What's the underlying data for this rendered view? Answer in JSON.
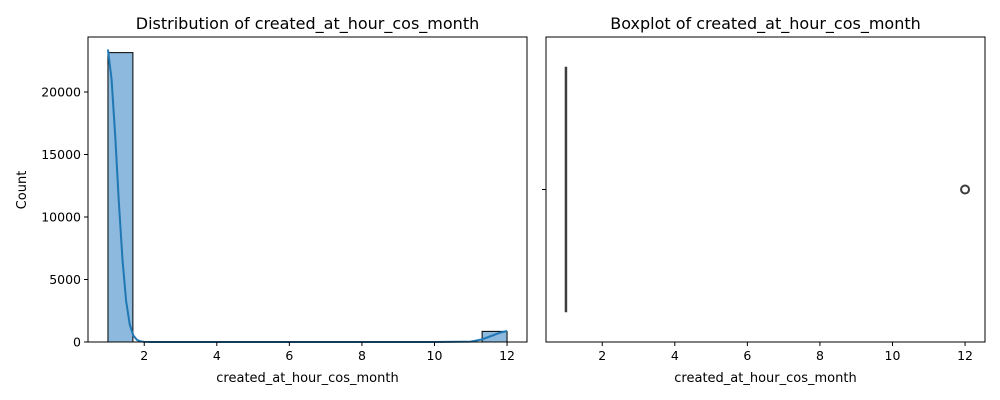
{
  "chart_data": [
    {
      "type": "histogram",
      "title": "Distribution of created_at_hour_cos_month",
      "xlabel": "created_at_hour_cos_month",
      "ylabel": "Count",
      "xlim": [
        0.45,
        12.55
      ],
      "ylim": [
        0,
        24400
      ],
      "xticks": [
        "2",
        "4",
        "6",
        "8",
        "10",
        "12"
      ],
      "yticks": [
        "0",
        "5000",
        "10000",
        "15000",
        "20000"
      ],
      "bins": [
        {
          "x0": 1.0,
          "x1": 1.6875,
          "count": 23150
        },
        {
          "x0": 11.3125,
          "x1": 12.0,
          "count": 850
        }
      ],
      "kde": {
        "x": [
          1.0,
          1.1,
          1.2,
          1.3,
          1.4,
          1.5,
          1.6,
          1.7,
          1.8,
          1.9,
          2.0,
          2.2,
          2.5,
          4,
          6,
          8,
          10,
          11.0,
          11.3,
          11.6,
          11.8,
          12.0
        ],
        "y": [
          23400,
          21000,
          16500,
          11200,
          6600,
          3300,
          1400,
          520,
          170,
          50,
          15,
          0,
          0,
          0,
          0,
          0,
          5,
          30,
          200,
          520,
          740,
          880
        ]
      },
      "colors": {
        "bar_fill": "#8cb9dd",
        "bar_edge": "#000000",
        "kde_line": "#1f77b4"
      },
      "grid": false
    },
    {
      "type": "boxplot",
      "title": "Boxplot of created_at_hour_cos_month",
      "xlabel": "created_at_hour_cos_month",
      "xlim": [
        0.45,
        12.55
      ],
      "xticks": [
        "2",
        "4",
        "6",
        "8",
        "10",
        "12"
      ],
      "box": {
        "q1": 1,
        "median": 1,
        "q3": 1,
        "whisker_low": 1,
        "whisker_high": 1
      },
      "outliers": [
        12
      ],
      "colors": {
        "box_line": "#3d3d3d",
        "outlier": "#3d3d3d"
      },
      "grid": false
    }
  ]
}
